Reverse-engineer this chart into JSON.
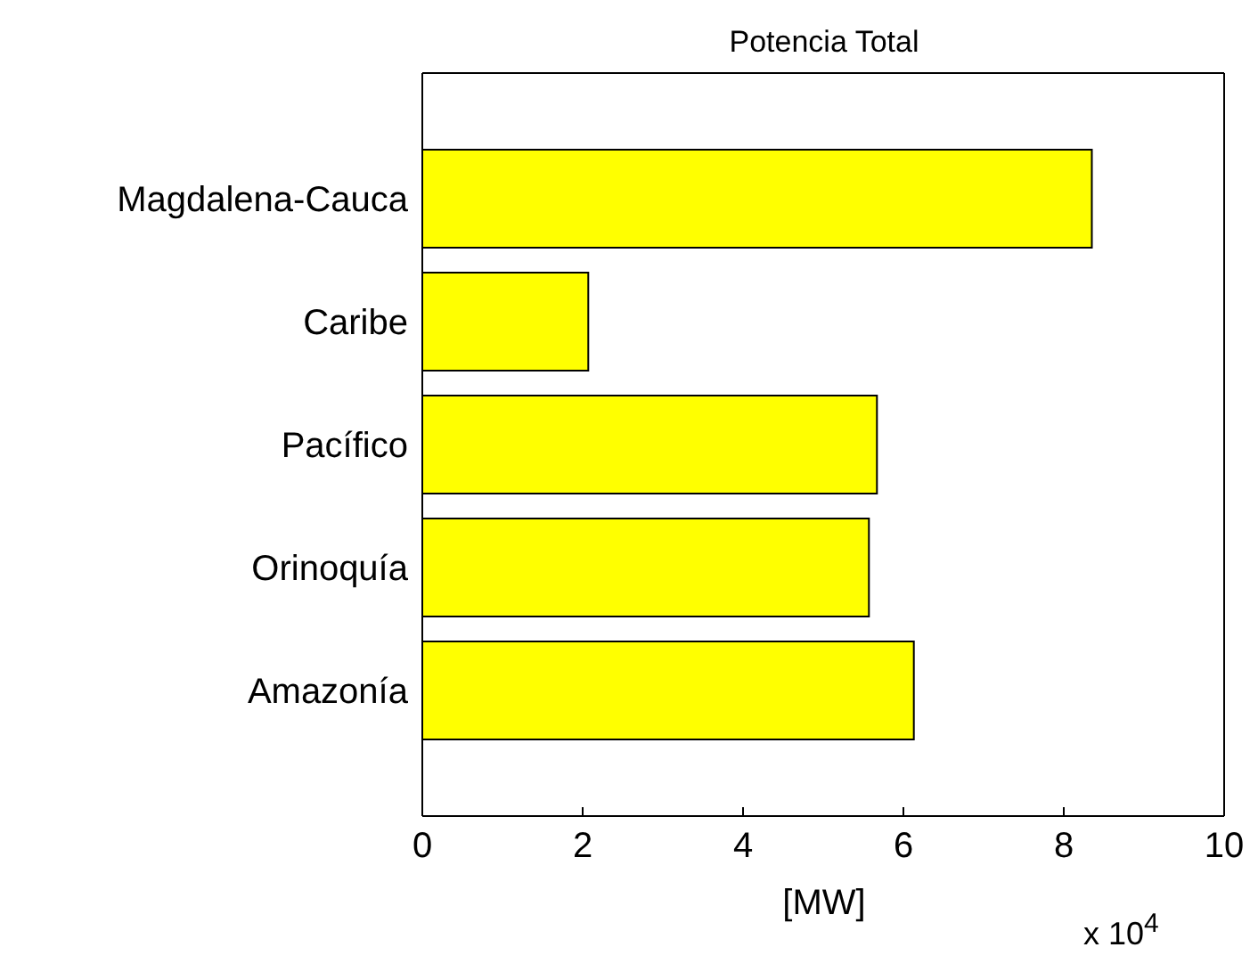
{
  "chart_data": {
    "type": "bar",
    "orientation": "horizontal",
    "title": "Potencia Total",
    "xlabel": "[MW]",
    "categories": [
      "Magdalena-Cauca",
      "Caribe",
      "Pacífico",
      "Orinoquía",
      "Amazonía"
    ],
    "values": [
      8.35,
      2.07,
      5.67,
      5.57,
      6.13
    ],
    "color": "#ffff00",
    "xlim": [
      0,
      10
    ],
    "xticks": [
      0,
      2,
      4,
      6,
      8,
      10
    ],
    "annotations": [
      "x 10$^{4}$"
    ]
  }
}
